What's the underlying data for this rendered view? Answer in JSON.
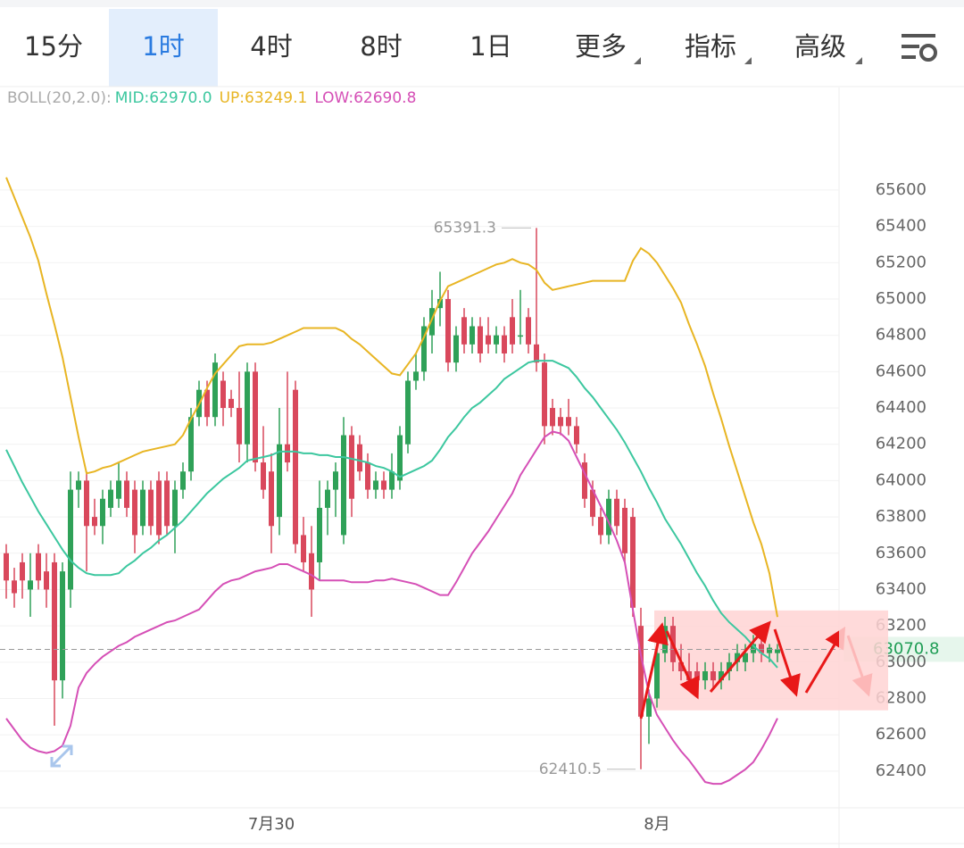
{
  "tabs": [
    "15分",
    "1时",
    "4时",
    "8时",
    "1日",
    "更多",
    "指标",
    "高级"
  ],
  "chart_data": {
    "type": "candlestick",
    "boll": {
      "label": "BOLL(20,2.0):",
      "lines": [
        {
          "label": "MID:62970.0",
          "color": "#3cc79f",
          "values": [
            64170,
            64080,
            63990,
            63910,
            63830,
            63760,
            63690,
            63620,
            63560,
            63520,
            63490,
            63480,
            63480,
            63480,
            63490,
            63530,
            63560,
            63600,
            63630,
            63670,
            63700,
            63740,
            63780,
            63830,
            63880,
            63930,
            63970,
            64010,
            64040,
            64070,
            64110,
            64120,
            64130,
            64140,
            64160,
            64160,
            64160,
            64150,
            64150,
            64140,
            64140,
            64130,
            64130,
            64120,
            64110,
            64100,
            64080,
            64070,
            64050,
            64020,
            64040,
            64060,
            64080,
            64110,
            64170,
            64240,
            64290,
            64350,
            64400,
            64430,
            64470,
            64510,
            64560,
            64590,
            64620,
            64650,
            64660,
            64660,
            64660,
            64640,
            64620,
            64570,
            64510,
            64460,
            64400,
            64340,
            64280,
            64210,
            64130,
            64050,
            63960,
            63880,
            63790,
            63720,
            63650,
            63570,
            63490,
            63420,
            63340,
            63270,
            63220,
            63180,
            63140,
            63090,
            63050,
            63020,
            62970.0
          ]
        },
        {
          "label": "UP:63249.1",
          "color": "#e8b523",
          "values": [
            65670,
            65560,
            65450,
            65340,
            65210,
            65030,
            64860,
            64680,
            64460,
            64240,
            64040,
            64050,
            64070,
            64080,
            64100,
            64120,
            64140,
            64160,
            64170,
            64180,
            64190,
            64200,
            64250,
            64340,
            64420,
            64510,
            64590,
            64640,
            64690,
            64740,
            64750,
            64750,
            64750,
            64760,
            64780,
            64800,
            64820,
            64840,
            64840,
            64840,
            64840,
            64840,
            64820,
            64780,
            64750,
            64710,
            64670,
            64630,
            64590,
            64580,
            64640,
            64700,
            64790,
            64890,
            64990,
            65070,
            65090,
            65110,
            65130,
            65150,
            65170,
            65190,
            65200,
            65220,
            65200,
            65190,
            65160,
            65090,
            65050,
            65060,
            65070,
            65080,
            65090,
            65100,
            65100,
            65100,
            65100,
            65100,
            65210,
            65280,
            65250,
            65200,
            65130,
            65060,
            64980,
            64860,
            64750,
            64630,
            64480,
            64340,
            64190,
            64050,
            63910,
            63770,
            63650,
            63490,
            63249.1
          ]
        },
        {
          "label": "LOW:62690.8",
          "color": "#d54fb6",
          "values": [
            62690,
            62630,
            62570,
            62530,
            62510,
            62500,
            62510,
            62540,
            62650,
            62860,
            62940,
            62990,
            63030,
            63060,
            63090,
            63110,
            63140,
            63160,
            63180,
            63200,
            63220,
            63230,
            63250,
            63270,
            63290,
            63340,
            63390,
            63430,
            63450,
            63460,
            63480,
            63500,
            63510,
            63520,
            63540,
            63540,
            63520,
            63500,
            63480,
            63450,
            63450,
            63450,
            63450,
            63440,
            63440,
            63440,
            63450,
            63450,
            63460,
            63450,
            63440,
            63430,
            63410,
            63390,
            63370,
            63370,
            63440,
            63520,
            63600,
            63660,
            63720,
            63790,
            63860,
            63930,
            64030,
            64100,
            64170,
            64240,
            64270,
            64260,
            64220,
            64130,
            64040,
            63950,
            63860,
            63770,
            63670,
            63550,
            63290,
            63040,
            62830,
            62710,
            62640,
            62570,
            62510,
            62460,
            62400,
            62340,
            62330,
            62330,
            62350,
            62380,
            62410,
            62450,
            62520,
            62600,
            62690.8
          ]
        }
      ]
    },
    "up_color": "#2fa158",
    "down_color": "#d9485c",
    "ohlc": [
      [
        63600,
        63650,
        63350,
        63450
      ],
      [
        63450,
        63520,
        63300,
        63380
      ],
      [
        63550,
        63600,
        63350,
        63450
      ],
      [
        63400,
        63600,
        63250,
        63450
      ],
      [
        63600,
        63650,
        63400,
        63450
      ],
      [
        63500,
        63600,
        63300,
        63400
      ],
      [
        63550,
        63600,
        62650,
        62900
      ],
      [
        62900,
        63550,
        62800,
        63500
      ],
      [
        63400,
        64050,
        63300,
        63950
      ],
      [
        63950,
        64050,
        63850,
        64000
      ],
      [
        64000,
        64050,
        63500,
        63750
      ],
      [
        63800,
        63900,
        63700,
        63750
      ],
      [
        63750,
        63950,
        63650,
        63900
      ],
      [
        63850,
        64000,
        63800,
        63950
      ],
      [
        63900,
        64100,
        63850,
        64000
      ],
      [
        64000,
        64050,
        63800,
        63850
      ],
      [
        63950,
        64000,
        63600,
        63700
      ],
      [
        63750,
        64000,
        63700,
        63950
      ],
      [
        63950,
        64000,
        63700,
        63750
      ],
      [
        64000,
        64050,
        63650,
        63700
      ],
      [
        64000,
        64050,
        63700,
        63750
      ],
      [
        63750,
        64000,
        63600,
        63950
      ],
      [
        63950,
        64100,
        63900,
        64050
      ],
      [
        64050,
        64400,
        64000,
        64350
      ],
      [
        64350,
        64550,
        64300,
        64500
      ],
      [
        64500,
        64550,
        64300,
        64350
      ],
      [
        64350,
        64700,
        64300,
        64650
      ],
      [
        64550,
        64600,
        64300,
        64400
      ],
      [
        64450,
        64500,
        64350,
        64400
      ],
      [
        64400,
        64600,
        64100,
        64200
      ],
      [
        64200,
        64650,
        64100,
        64600
      ],
      [
        64600,
        64650,
        64050,
        64100
      ],
      [
        64100,
        64300,
        63900,
        63950
      ],
      [
        64050,
        64150,
        63600,
        63750
      ],
      [
        63800,
        64400,
        63700,
        64200
      ],
      [
        64200,
        64600,
        64050,
        64100
      ],
      [
        64500,
        64550,
        63600,
        63650
      ],
      [
        63700,
        63800,
        63500,
        63550
      ],
      [
        63600,
        63750,
        63250,
        63400
      ],
      [
        63550,
        64000,
        63450,
        63850
      ],
      [
        63850,
        64000,
        63700,
        63950
      ],
      [
        63950,
        64100,
        63800,
        64050
      ],
      [
        63700,
        64350,
        63650,
        64250
      ],
      [
        64250,
        64300,
        63800,
        63900
      ],
      [
        64200,
        64250,
        64000,
        64050
      ],
      [
        64100,
        64150,
        63900,
        63950
      ],
      [
        63950,
        64050,
        63900,
        64000
      ],
      [
        64000,
        64050,
        63900,
        63950
      ],
      [
        63950,
        64150,
        63900,
        64050
      ],
      [
        64000,
        64300,
        63950,
        64250
      ],
      [
        64200,
        64600,
        64150,
        64550
      ],
      [
        64550,
        64700,
        64500,
        64600
      ],
      [
        64600,
        64900,
        64550,
        64850
      ],
      [
        64800,
        65050,
        64700,
        64950
      ],
      [
        64950,
        65150,
        64850,
        65000
      ],
      [
        65000,
        65050,
        64600,
        64650
      ],
      [
        64650,
        64850,
        64600,
        64800
      ],
      [
        64900,
        64950,
        64700,
        64750
      ],
      [
        64750,
        64900,
        64700,
        64850
      ],
      [
        64850,
        64900,
        64650,
        64700
      ],
      [
        64800,
        64900,
        64700,
        64750
      ],
      [
        64750,
        64850,
        64700,
        64800
      ],
      [
        64800,
        64850,
        64650,
        64700
      ],
      [
        64900,
        65000,
        64700,
        64750
      ],
      [
        64800,
        65050,
        64750,
        64800
      ],
      [
        64900,
        64950,
        64700,
        64750
      ],
      [
        64750,
        65391.3,
        64600,
        64650
      ],
      [
        64650,
        64700,
        64200,
        64300
      ],
      [
        64400,
        64450,
        64250,
        64300
      ],
      [
        64350,
        64400,
        64250,
        64300
      ],
      [
        64350,
        64450,
        64250,
        64300
      ],
      [
        64300,
        64350,
        64150,
        64200
      ],
      [
        64100,
        64150,
        63850,
        63900
      ],
      [
        63950,
        64000,
        63750,
        63800
      ],
      [
        63800,
        63850,
        63650,
        63700
      ],
      [
        63700,
        63950,
        63650,
        63900
      ],
      [
        63900,
        63950,
        63700,
        63750
      ],
      [
        63850,
        63900,
        63550,
        63600
      ],
      [
        63800,
        63850,
        63250,
        63300
      ],
      [
        63200,
        63300,
        62410.5,
        62700
      ],
      [
        62700,
        62850,
        62550,
        62800
      ],
      [
        62800,
        63150,
        62750,
        63050
      ],
      [
        63050,
        63250,
        63000,
        63200
      ],
      [
        63200,
        63250,
        62950,
        63000
      ],
      [
        63000,
        63100,
        62900,
        62950
      ],
      [
        62950,
        63050,
        62850,
        62900
      ],
      [
        62950,
        63000,
        62850,
        62900
      ],
      [
        62900,
        63000,
        62850,
        62950
      ],
      [
        62950,
        63000,
        62850,
        62900
      ],
      [
        62900,
        63000,
        62850,
        62950
      ],
      [
        62950,
        63050,
        62900,
        63000
      ],
      [
        63000,
        63100,
        62950,
        63050
      ],
      [
        63000,
        63100,
        62950,
        63050
      ],
      [
        63050,
        63150,
        63000,
        63100
      ],
      [
        63100,
        63150,
        63000,
        63050
      ],
      [
        63050,
        63100,
        63000,
        63080
      ],
      [
        63050,
        63100,
        63000,
        63070.8
      ]
    ],
    "categories": [
      null,
      null,
      null,
      null,
      null,
      null,
      null,
      null,
      null,
      null,
      null,
      null,
      null,
      null,
      null,
      null,
      null,
      null,
      null,
      null,
      null,
      null,
      null,
      null,
      null,
      null,
      null,
      null,
      null,
      null,
      null,
      null,
      null,
      "7月30",
      null,
      null,
      null,
      null,
      null,
      null,
      null,
      null,
      null,
      null,
      null,
      null,
      null,
      null,
      null,
      null,
      null,
      null,
      null,
      null,
      null,
      null,
      null,
      null,
      null,
      null,
      null,
      null,
      null,
      null,
      null,
      null,
      null,
      null,
      null,
      null,
      null,
      null,
      null,
      null,
      null,
      null,
      null,
      null,
      null,
      null,
      null,
      "8月",
      null,
      null,
      null,
      null,
      null,
      null,
      null,
      null,
      null,
      null,
      null,
      null,
      null,
      null,
      null
    ],
    "ylim": [
      62198,
      66155
    ],
    "yticks": [
      62400,
      62600,
      62800,
      63000,
      63200,
      63400,
      63600,
      63800,
      64000,
      64200,
      64400,
      64600,
      64800,
      65000,
      65200,
      65400,
      65600
    ],
    "grid": true,
    "zone": [
      62735,
      63285
    ]
  }
}
